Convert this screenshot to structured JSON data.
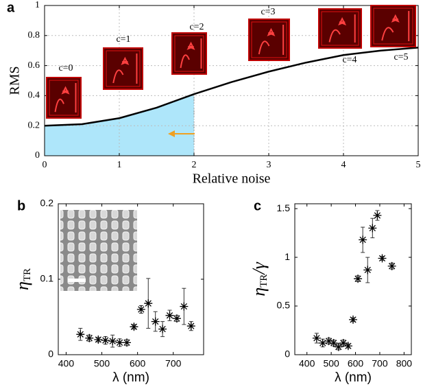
{
  "chart_data": [
    {
      "type": "line",
      "panel_label": "a",
      "xlabel": "Relative noise",
      "ylabel": "RMS",
      "x": [
        0,
        0.5,
        1,
        1.5,
        2,
        2.5,
        3,
        3.5,
        4,
        4.5,
        5
      ],
      "values": [
        0.2,
        0.21,
        0.25,
        0.32,
        0.41,
        0.49,
        0.56,
        0.62,
        0.67,
        0.7,
        0.72
      ],
      "color": "#000000",
      "shade_range": [
        0,
        2
      ],
      "shade_color": "#aee6fa",
      "xlim": [
        0,
        5
      ],
      "xticks": [
        0,
        1,
        2,
        3,
        4,
        5
      ],
      "ylim": [
        0,
        1
      ],
      "yticks": [
        0,
        0.2,
        0.4,
        0.6,
        0.8,
        1
      ],
      "grid": true,
      "annotations": [
        "c=0",
        "c=1",
        "c=2",
        "c=3",
        "c=4",
        "c=5"
      ]
    },
    {
      "type": "errorbar",
      "panel_label": "b",
      "xlabel": "λ (nm)",
      "ylabel": {
        "base": "η",
        "sub": "TR"
      },
      "x": [
        440,
        465,
        490,
        510,
        530,
        550,
        570,
        590,
        610,
        630,
        650,
        670,
        690,
        710,
        730,
        750
      ],
      "values": [
        0.027,
        0.022,
        0.02,
        0.019,
        0.018,
        0.016,
        0.016,
        0.037,
        0.06,
        0.068,
        0.044,
        0.034,
        0.052,
        0.048,
        0.064,
        0.038
      ],
      "errors": [
        0.008,
        0.004,
        0.003,
        0.005,
        0.008,
        0.005,
        0.004,
        0.003,
        0.005,
        0.033,
        0.013,
        0.01,
        0.007,
        0.004,
        0.024,
        0.006
      ],
      "color": "#000000",
      "xlim": [
        378,
        785
      ],
      "xticks": [
        400,
        500,
        600,
        700
      ],
      "ylim": [
        0,
        0.2
      ],
      "yticks": [
        0,
        0.1,
        0.2
      ]
    },
    {
      "type": "errorbar",
      "panel_label": "c",
      "xlabel": "λ (nm)",
      "ylabel": {
        "base": "η",
        "sub": "TR",
        "tail": "/γ"
      },
      "x": [
        440,
        465,
        490,
        510,
        530,
        550,
        570,
        590,
        610,
        630,
        650,
        670,
        690,
        710,
        750
      ],
      "values": [
        0.17,
        0.12,
        0.14,
        0.12,
        0.08,
        0.12,
        0.09,
        0.36,
        0.78,
        1.18,
        0.87,
        1.3,
        1.43,
        0.99,
        0.91
      ],
      "errors": [
        0.05,
        0.04,
        0.03,
        0.03,
        0.03,
        0.03,
        0.02,
        0.02,
        0.03,
        0.13,
        0.13,
        0.1,
        0.05,
        0.02,
        0.03
      ],
      "color": "#000000",
      "xlim": [
        350,
        830
      ],
      "xticks": [
        400,
        500,
        600,
        700,
        800
      ],
      "ylim": [
        0,
        1.55
      ],
      "yticks": [
        0,
        0.5,
        1,
        1.5
      ]
    }
  ]
}
